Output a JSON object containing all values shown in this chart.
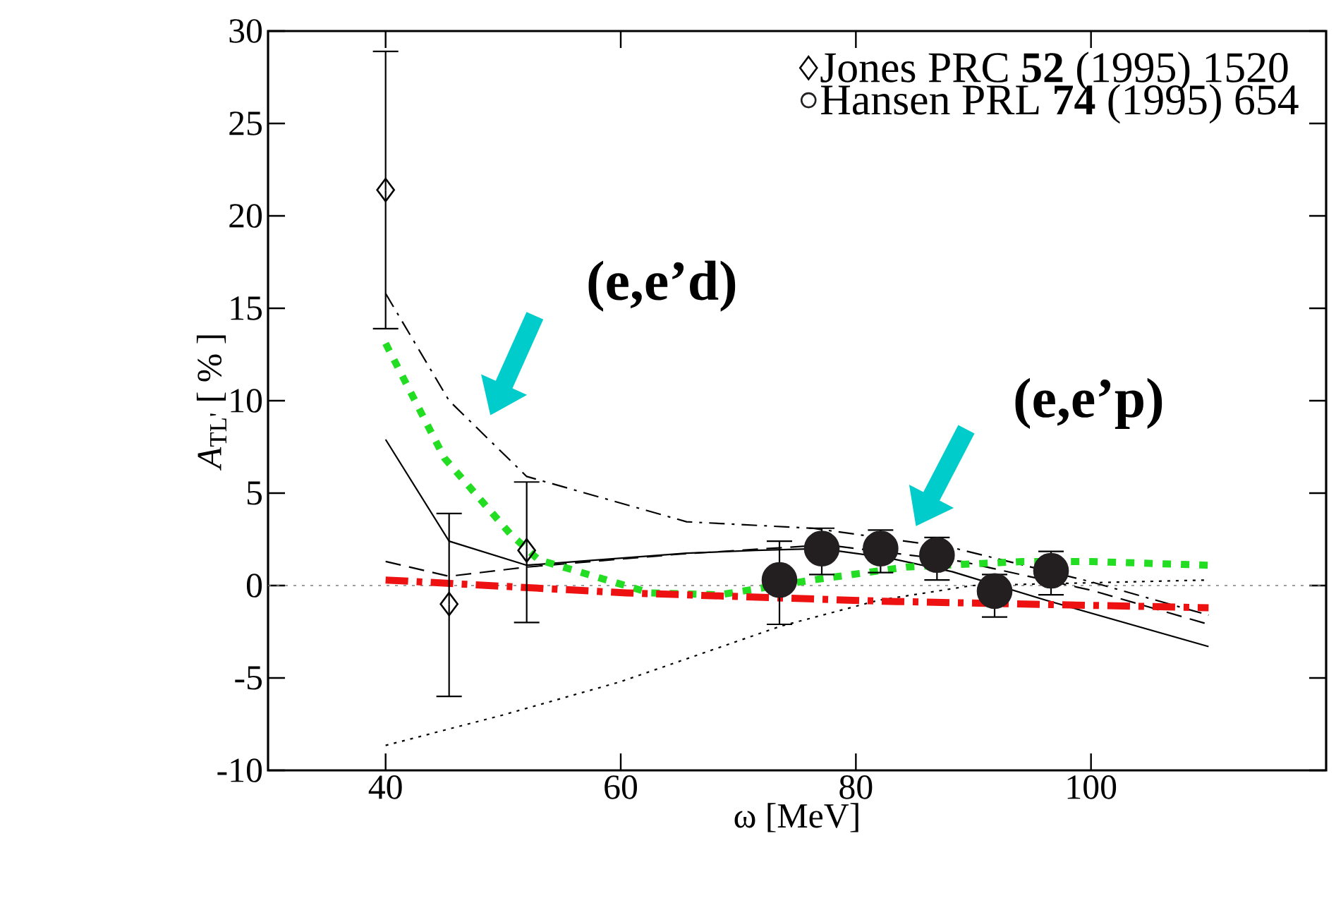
{
  "chart_data": {
    "type": "line",
    "xlabel": "ω [MeV]",
    "ylabel": "*A*$_{TL'}$ [ % ]",
    "xlim": [
      30,
      120
    ],
    "ylim": [
      -10,
      30
    ],
    "xticks": [
      40,
      60,
      80,
      100
    ],
    "yticks": [
      -10,
      -5,
      0,
      5,
      10,
      15,
      20,
      25,
      30
    ],
    "legend": "top right",
    "grid": false,
    "annotations": [
      "(e,e’d)",
      "(e,e’p)"
    ],
    "ref_lines": [
      {
        "axis": "y",
        "value": 0,
        "color": "#808080",
        "line_style": "dotted"
      }
    ],
    "series": [
      {
        "color": "#000000",
        "line_style": "solid",
        "x": [
          40,
          45.4,
          52,
          65.6,
          71.5,
          77,
          82.7,
          88.2,
          96.2,
          110
        ],
        "values": [
          7.9,
          2.4,
          1.1,
          1.75,
          1.9,
          2.0,
          1.5,
          0.75,
          -0.8,
          -3.3
        ]
      },
      {
        "color": "#000000",
        "line_style": "dashed",
        "x": [
          40,
          45.4,
          52,
          65,
          77.5,
          89,
          100,
          110
        ],
        "values": [
          1.3,
          0.5,
          1.0,
          1.7,
          2.2,
          1.3,
          -0.25,
          -2.1
        ]
      },
      {
        "color": "#000000",
        "line_style": "dashdot",
        "x": [
          40,
          45.4,
          52,
          65.6,
          76.3,
          88.2,
          100,
          110
        ],
        "values": [
          15.8,
          10.0,
          5.9,
          3.45,
          3.1,
          2.05,
          0.2,
          -1.6
        ]
      },
      {
        "color": "#000000",
        "line_style": "dotted",
        "x": [
          40,
          50,
          60,
          73.6,
          81.9,
          89.9,
          110
        ],
        "values": [
          -8.65,
          -7.0,
          -5.2,
          -2.2,
          -0.8,
          0,
          0.3
        ]
      },
      {
        "color": "#22dd22",
        "line_style": "dotted",
        "x": [
          40,
          45,
          50.6,
          53,
          62.5,
          68.4,
          76.3,
          84.3,
          94.2,
          100,
          110
        ],
        "values": [
          13.1,
          6.9,
          2.8,
          1.4,
          -0.4,
          -0.5,
          0.3,
          1.0,
          1.3,
          1.3,
          1.1
        ]
      },
      {
        "color": "#ee1111",
        "line_style": "dashdot",
        "x": [
          40,
          60.5,
          82.3,
          110
        ],
        "values": [
          0.3,
          -0.4,
          -0.85,
          -1.2
        ]
      },
      {
        "type": "scatter",
        "name": "Jones PRC **52** (1995) 1520",
        "color": "#000000",
        "marker": "diamond",
        "x": [
          40,
          45.4,
          52
        ],
        "values": [
          21.4,
          -1.0,
          1.9
        ],
        "errors": [
          [
            13.9,
            28.9
          ],
          [
            -6.0,
            3.9
          ],
          [
            -2.0,
            5.6
          ]
        ]
      },
      {
        "type": "scatter",
        "name": "Hansen PRL **74** (1995) 654",
        "color": "#231f20",
        "marker": "circle",
        "x": [
          73.5,
          77.1,
          82.1,
          86.9,
          91.8,
          96.6
        ],
        "values": [
          0.3,
          2.0,
          2.0,
          1.65,
          -0.3,
          0.8
        ],
        "errors": [
          [
            -2.1,
            2.4
          ],
          [
            0.6,
            3.1
          ],
          [
            0.7,
            3.0
          ],
          [
            0.3,
            2.6
          ],
          [
            -1.7,
            0.6
          ],
          [
            -0.5,
            1.85
          ]
        ]
      }
    ]
  }
}
